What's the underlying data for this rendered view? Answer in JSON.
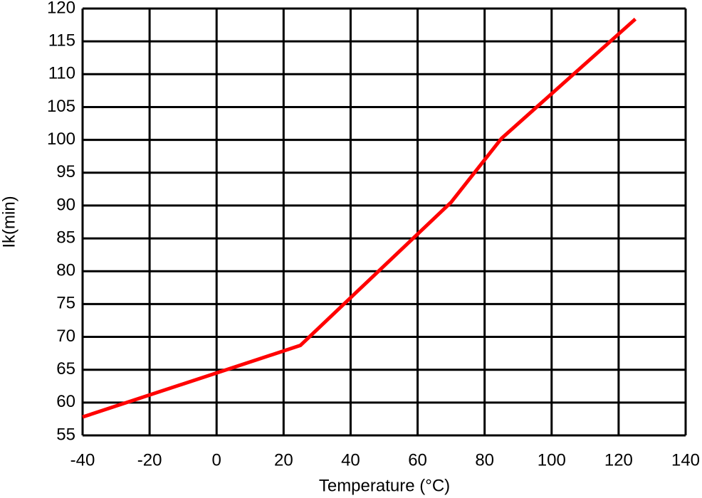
{
  "chart_data": {
    "type": "line",
    "xlabel": "Temperature (°C)",
    "ylabel": "Ik(min)",
    "x": [
      -40,
      25,
      70,
      85,
      125
    ],
    "series": [
      {
        "color": "#ff0000",
        "values": [
          57.8,
          68.7,
          90.5,
          100.2,
          118.4
        ]
      }
    ],
    "xlim": [
      -40,
      140
    ],
    "xticks": [
      -40,
      -20,
      0,
      20,
      40,
      60,
      80,
      100,
      120,
      140
    ],
    "ylim": [
      55,
      120
    ],
    "yticks": [
      55,
      60,
      65,
      70,
      75,
      80,
      85,
      90,
      95,
      100,
      105,
      110,
      115,
      120
    ],
    "grid": true
  }
}
